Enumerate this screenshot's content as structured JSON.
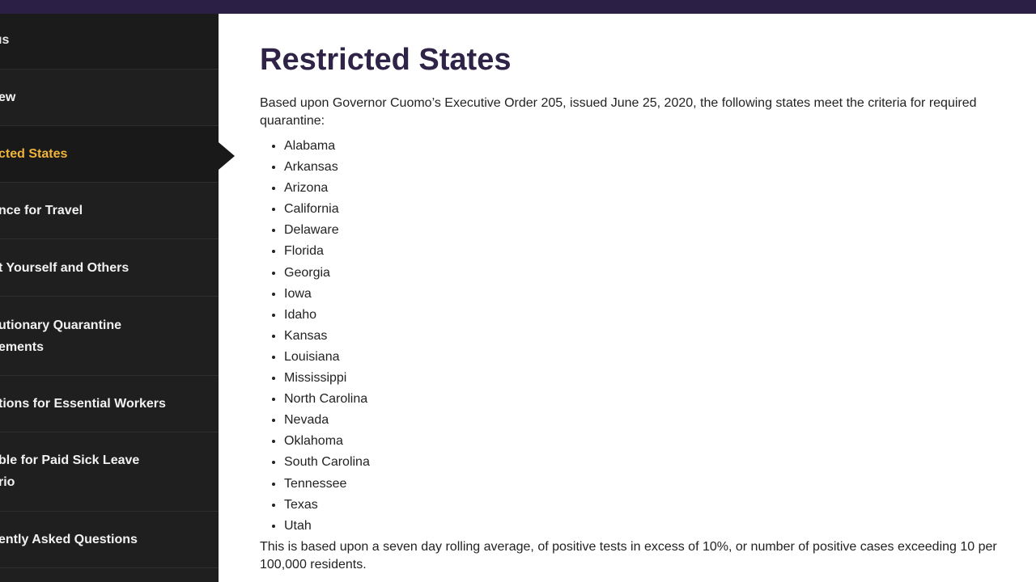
{
  "sidebar": {
    "header": "ıs",
    "items": [
      {
        "label": "ew"
      },
      {
        "label": "cted States",
        "active": true
      },
      {
        "label": "nce for Travel"
      },
      {
        "label": "t Yourself and Others"
      },
      {
        "label_line1": "utionary Quarantine",
        "label_line2": "ements"
      },
      {
        "label": "tions for Essential Workers"
      },
      {
        "label_line1": "ble for Paid Sick Leave",
        "label_line2": "rio"
      },
      {
        "label": "ently Asked Questions"
      }
    ]
  },
  "main": {
    "title": "Restricted States",
    "intro": "Based upon Governor Cuomo’s Executive Order 205, issued June 25, 2020, the following states meet the criteria for required quarantine:",
    "states": [
      "Alabama",
      "Arkansas",
      "Arizona",
      "California",
      "Delaware",
      "Florida",
      "Georgia",
      "Iowa",
      "Idaho",
      "Kansas",
      "Louisiana",
      "Mississippi",
      "North Carolina",
      "Nevada",
      "Oklahoma",
      "South Carolina",
      "Tennessee",
      "Texas",
      "Utah"
    ],
    "footnote": "This is based upon a seven day rolling average, of positive tests in excess of 10%, or number of positive cases exceeding 10 per 100,000 residents."
  },
  "colors": {
    "top_bar": "#2c1f45",
    "sidebar_bg": "#1f1f1f",
    "active_accent": "#f0b33c",
    "title": "#2f2447"
  }
}
